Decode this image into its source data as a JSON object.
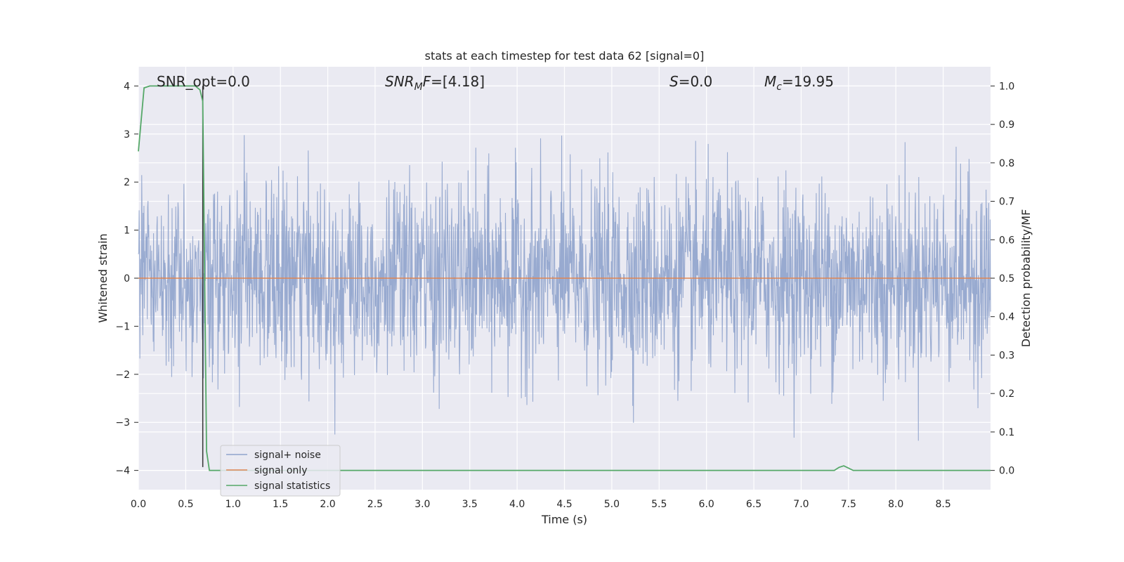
{
  "chart_data": {
    "type": "line",
    "title": "stats at each timestep for test data 62 [signal=0]",
    "xlabel": "Time (s)",
    "ylabel_left": "Whitened strain",
    "ylabel_right": "Detection probability/MF",
    "xlim": [
      0.0,
      9.0
    ],
    "ylim_left": [
      -4.4,
      4.4
    ],
    "ylim_right": [
      -0.05,
      1.05
    ],
    "xticks": [
      "0.0",
      "0.5",
      "1.0",
      "1.5",
      "2.0",
      "2.5",
      "3.0",
      "3.5",
      "4.0",
      "4.5",
      "5.0",
      "5.5",
      "6.0",
      "6.5",
      "7.0",
      "7.5",
      "8.0",
      "8.5"
    ],
    "yticks_left": [
      "4",
      "3",
      "2",
      "1",
      "0",
      "−1",
      "−2",
      "−3",
      "−4"
    ],
    "yticks_right": [
      "1.0",
      "0.9",
      "0.8",
      "0.7",
      "0.6",
      "0.5",
      "0.4",
      "0.3",
      "0.2",
      "0.1",
      "0.0"
    ],
    "grid": true,
    "legend_position": "lower-left",
    "annotations": {
      "snr_opt": "SNR_opt=0.0",
      "snr_mf_sym": "SNR",
      "snr_mf_sub": "M",
      "snr_mf_f": "F",
      "snr_mf_val": "=[4.18]",
      "s_sym": "S",
      "s_val": "=0.0",
      "mc_sym": "M",
      "mc_sub": "c",
      "mc_val": "=19.95"
    },
    "series": [
      {
        "name": "signal+ noise",
        "color": "#8fa3cc",
        "description_kind": "noise",
        "n_samples": 2304,
        "sigma": 1.0,
        "axis": "left"
      },
      {
        "name": "signal only",
        "color": "#dd8452",
        "x": [
          0.0,
          9.0
        ],
        "y": [
          0.0,
          0.0
        ],
        "axis": "left"
      },
      {
        "name": "signal statistics",
        "color": "#55a868",
        "x": [
          0.0,
          0.06,
          0.12,
          0.3,
          0.5,
          0.6,
          0.65,
          0.68,
          0.7,
          0.72,
          0.75,
          1.0,
          7.35,
          7.4,
          7.45,
          7.55,
          9.0
        ],
        "y": [
          0.83,
          0.995,
          1.0,
          1.0,
          1.0,
          1.0,
          0.99,
          0.96,
          0.5,
          0.05,
          0.0,
          0.0,
          0.0,
          0.008,
          0.012,
          0.0,
          0.0
        ],
        "axis": "right"
      }
    ],
    "marker_line": {
      "x": 0.68,
      "y": [
        -3.93,
        4.0
      ],
      "color": "#333333"
    }
  }
}
